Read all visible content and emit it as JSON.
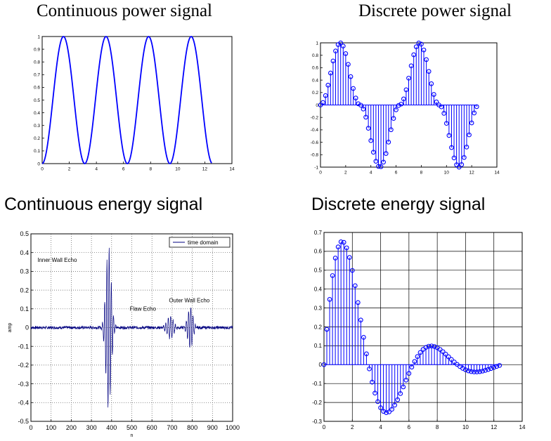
{
  "chart_data": [
    {
      "id": "cont-power",
      "type": "line",
      "title": "Continuous power signal",
      "xlim": [
        0,
        14
      ],
      "ylim": [
        0,
        1
      ],
      "xticks": [
        0,
        2,
        4,
        6,
        8,
        10,
        12,
        14
      ],
      "xtick_labels": [
        "0",
        "2",
        "4",
        "6",
        "8",
        "10",
        "12",
        "14"
      ],
      "yticks": [
        0,
        0.1,
        0.2,
        0.3,
        0.4,
        0.5,
        0.6,
        0.7,
        0.8,
        0.9,
        1
      ],
      "ytick_labels": [
        "0",
        "0.1",
        "0.2",
        "0.3",
        "0.4",
        "0.5",
        "0.6",
        "0.7",
        "0.8",
        "0.9",
        "1"
      ],
      "grid": false,
      "series": [
        {
          "function": "sin(x)^2",
          "x_range": [
            0,
            12.5
          ],
          "color": "#0000ff"
        }
      ]
    },
    {
      "id": "disc-power",
      "type": "stem",
      "title": "Discrete power signal",
      "xlim": [
        0,
        14
      ],
      "ylim": [
        -1,
        1
      ],
      "xticks": [
        0,
        2,
        4,
        6,
        8,
        10,
        12,
        14
      ],
      "xtick_labels": [
        "0",
        "2",
        "4",
        "6",
        "8",
        "10",
        "12",
        "14"
      ],
      "yticks": [
        -1,
        -0.8,
        -0.6,
        -0.4,
        -0.2,
        0,
        0.2,
        0.4,
        0.6,
        0.8,
        1
      ],
      "ytick_labels": [
        "-1",
        "-0.8",
        "-0.6",
        "-0.4",
        "-0.2",
        "0",
        "0.2",
        "0.4",
        "0.6",
        "0.8",
        "1"
      ],
      "grid": false,
      "series": [
        {
          "function": "sign(sin(x))*sin(x)^2",
          "x_start": 0,
          "x_step": 0.2,
          "x_end": 12.4,
          "color": "#0000ff"
        }
      ]
    },
    {
      "id": "cont-energy",
      "type": "line",
      "title": "Continuous energy signal",
      "xlabel": "n",
      "ylabel": "amp",
      "xlim": [
        0,
        1000
      ],
      "ylim": [
        -0.5,
        0.5
      ],
      "xticks": [
        0,
        100,
        200,
        300,
        400,
        500,
        600,
        700,
        800,
        900,
        1000
      ],
      "xtick_labels": [
        "0",
        "100",
        "200",
        "300",
        "400",
        "500",
        "600",
        "700",
        "800",
        "900",
        "1000"
      ],
      "yticks": [
        -0.5,
        -0.4,
        -0.3,
        -0.2,
        -0.1,
        0,
        0.1,
        0.2,
        0.3,
        0.4,
        0.5
      ],
      "ytick_labels": [
        "-0.5",
        "-0.4",
        "-0.3",
        "-0.2",
        "-0.1",
        "0",
        "0.1",
        "0.2",
        "0.3",
        "0.4",
        "0.5"
      ],
      "grid": "dotted",
      "legend": {
        "label": "time domain",
        "position": "top-right"
      },
      "annotations": [
        {
          "text": "Inner Wall Echo",
          "x": 130,
          "y": 0.35
        },
        {
          "text": "Flaw Echo",
          "x": 555,
          "y": 0.09
        },
        {
          "text": "Outer Wall Echo",
          "x": 785,
          "y": 0.135
        }
      ],
      "bursts": [
        {
          "center": 385,
          "amplitude": 0.44,
          "width": 18,
          "period": 11
        },
        {
          "center": 690,
          "amplitude": 0.06,
          "width": 22,
          "period": 12
        },
        {
          "center": 790,
          "amplitude": 0.11,
          "width": 18,
          "period": 11
        }
      ],
      "noise_amplitude": 0.008,
      "color": "#000080"
    },
    {
      "id": "disc-energy",
      "type": "stem",
      "title": "Discrete energy signal",
      "xlim": [
        0,
        14
      ],
      "ylim": [
        -0.3,
        0.7
      ],
      "xticks": [
        0,
        2,
        4,
        6,
        8,
        10,
        12,
        14
      ],
      "xtick_labels": [
        "0",
        "2",
        "4",
        "6",
        "8",
        "10",
        "12",
        "14"
      ],
      "yticks": [
        -0.3,
        -0.2,
        -0.1,
        0,
        0.1,
        0.2,
        0.3,
        0.4,
        0.5,
        0.6,
        0.7
      ],
      "ytick_labels": [
        "-0.3",
        "-0.2",
        "-0.1",
        "0",
        "0.1",
        "0.2",
        "0.3",
        "0.4",
        "0.5",
        "0.6",
        "0.7"
      ],
      "grid": "solid",
      "series": [
        {
          "function": "exp(-0.3x)*sin(x)",
          "x_start": 0,
          "x_step": 0.2,
          "x_end": 12.4,
          "color": "#0000ff"
        }
      ]
    }
  ]
}
